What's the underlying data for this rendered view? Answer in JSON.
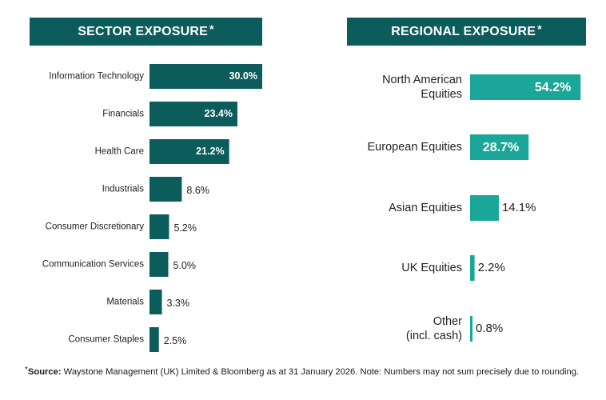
{
  "headers": {
    "sector": "SECTOR EXPOSURE",
    "regional": "REGIONAL EXPOSURE",
    "asterisk": "*"
  },
  "chart_data": [
    {
      "type": "bar",
      "orientation": "horizontal",
      "title": "SECTOR EXPOSURE*",
      "categories": [
        "Information Technology",
        "Financials",
        "Health Care",
        "Industrials",
        "Consumer Discretionary",
        "Communication Services",
        "Materials",
        "Consumer Staples"
      ],
      "values": [
        30.0,
        23.4,
        21.2,
        8.6,
        5.2,
        5.0,
        3.3,
        2.5
      ],
      "labels": [
        "30.0%",
        "23.4%",
        "21.2%",
        "8.6%",
        "5.2%",
        "5.0%",
        "3.3%",
        "2.5%"
      ],
      "unit": "%",
      "color": "#0c5c5b"
    },
    {
      "type": "bar",
      "orientation": "horizontal",
      "title": "REGIONAL EXPOSURE*",
      "categories": [
        [
          "North American",
          "Equities"
        ],
        [
          "European Equities"
        ],
        [
          "Asian Equities"
        ],
        [
          "UK Equities"
        ],
        [
          "Other",
          "(incl. cash)"
        ]
      ],
      "values": [
        54.2,
        28.7,
        14.1,
        2.2,
        0.8
      ],
      "labels": [
        "54.2%",
        "28.7%",
        "14.1%",
        "2.2%",
        "0.8%"
      ],
      "unit": "%",
      "color": "#1aa79a"
    }
  ],
  "footnote": {
    "asterisk": "*",
    "source_label": "Source:",
    "text": " Waystone Management (UK) Limited & Bloomberg as at 31 January 2026. Note: Numbers may not sum precisely due to rounding."
  }
}
